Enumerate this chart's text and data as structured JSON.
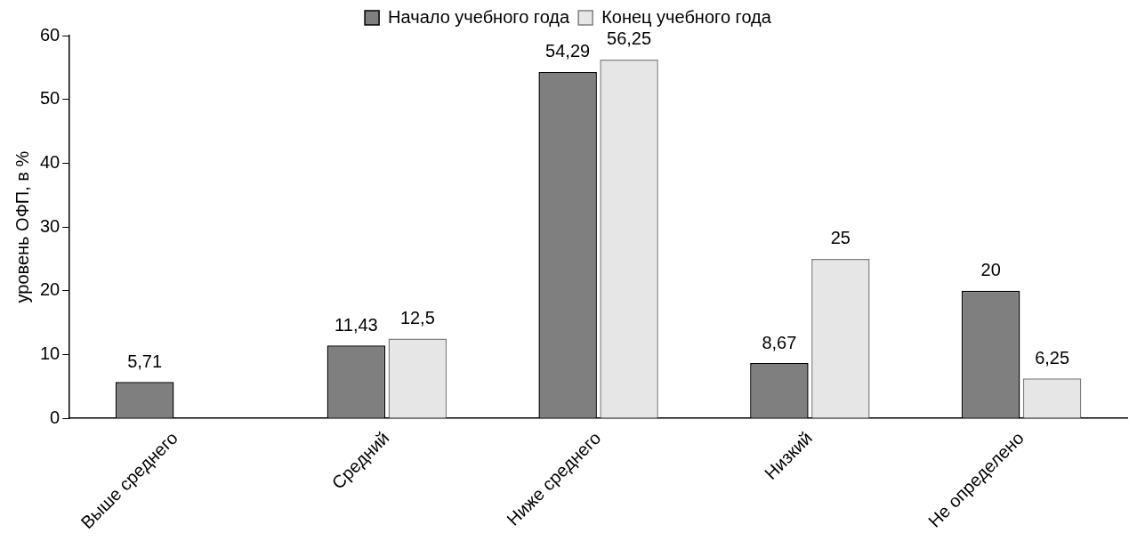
{
  "chart_data": {
    "type": "bar",
    "ylabel": "уровень ОФП, в %",
    "categories": [
      "Выше среднего",
      "Средний",
      "Ниже среднего",
      "Низкий",
      "Не определено"
    ],
    "series": [
      {
        "name": "Начало учебного года",
        "color": "#7f7f7f",
        "values": [
          5.71,
          11.43,
          54.29,
          8.67,
          20
        ],
        "value_labels": [
          "5,71",
          "11,43",
          "54,29",
          "8,67",
          "20"
        ]
      },
      {
        "name": "Конец учебного года",
        "color": "#e6e6e6",
        "values": [
          null,
          12.5,
          56.25,
          25,
          6.25
        ],
        "value_labels": [
          null,
          "12,5",
          "56,25",
          "25",
          "6,25"
        ]
      }
    ],
    "ylim": [
      0,
      60
    ],
    "yticks": [
      0,
      10,
      20,
      30,
      40,
      50,
      60
    ],
    "grid": false,
    "legend": "top"
  }
}
